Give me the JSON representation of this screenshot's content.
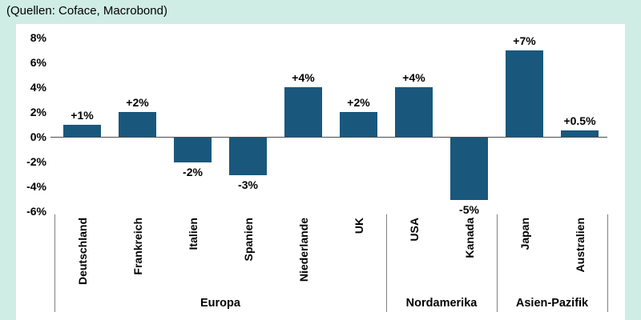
{
  "source_caption": "(Quellen: Coface, Macrobond)",
  "colors": {
    "page_background": "#CFEDE5",
    "plot_background": "#FFFFFF",
    "bar": "#19587C",
    "zero_line": "#4D4D4D",
    "separator": "#808080",
    "text": "#000000"
  },
  "chart_data": {
    "type": "bar",
    "title": "(Quellen: Coface, Macrobond)",
    "ylabel": "",
    "xlabel": "",
    "ylim": [
      -6,
      8
    ],
    "grid": false,
    "legend": false,
    "yticks": [
      8,
      6,
      4,
      2,
      0,
      -2,
      -4,
      -6
    ],
    "ytick_labels": [
      "8%",
      "6%",
      "4%",
      "2%",
      "0%",
      "-2%",
      "-4%",
      "-6%"
    ],
    "groups": [
      {
        "label": "Europa",
        "bars": [
          {
            "category": "Deutschland",
            "value": 1,
            "value_label": "+1%"
          },
          {
            "category": "Frankreich",
            "value": 2,
            "value_label": "+2%"
          },
          {
            "category": "Italien",
            "value": -2,
            "value_label": "-2%"
          },
          {
            "category": "Spanien",
            "value": -3,
            "value_label": "-3%"
          },
          {
            "category": "Niederlande",
            "value": 4,
            "value_label": "+4%"
          },
          {
            "category": "UK",
            "value": 2,
            "value_label": "+2%"
          }
        ]
      },
      {
        "label": "Nordamerika",
        "bars": [
          {
            "category": "USA",
            "value": 4,
            "value_label": "+4%"
          },
          {
            "category": "Kanada",
            "value": -5,
            "value_label": "-5%"
          }
        ]
      },
      {
        "label": "Asien-Pazifik",
        "bars": [
          {
            "category": "Japan",
            "value": 7,
            "value_label": "+7%"
          },
          {
            "category": "Australien",
            "value": 0.5,
            "value_label": "+0.5%"
          }
        ]
      }
    ]
  }
}
